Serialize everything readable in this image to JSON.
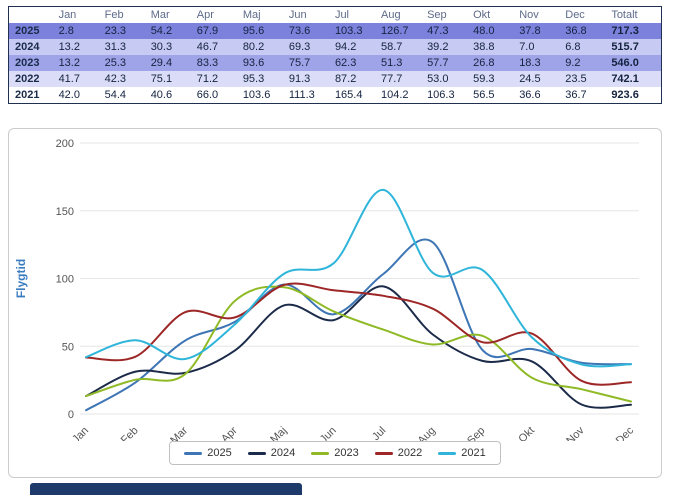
{
  "table": {
    "columns": [
      "",
      "Jan",
      "Feb",
      "Mar",
      "Apr",
      "Maj",
      "Jun",
      "Jul",
      "Aug",
      "Sep",
      "Okt",
      "Nov",
      "Dec",
      "Totalt"
    ],
    "rows": [
      {
        "year": "2025",
        "values": [
          "2.8",
          "23.3",
          "54.2",
          "67.9",
          "95.6",
          "73.6",
          "103.3",
          "126.7",
          "47.3",
          "48.0",
          "37.8",
          "36.8"
        ],
        "total": "717.3"
      },
      {
        "year": "2024",
        "values": [
          "13.2",
          "31.3",
          "30.3",
          "46.7",
          "80.2",
          "69.3",
          "94.2",
          "58.7",
          "39.2",
          "38.8",
          "7.0",
          "6.8"
        ],
        "total": "515.7"
      },
      {
        "year": "2023",
        "values": [
          "13.2",
          "25.3",
          "29.4",
          "83.3",
          "93.6",
          "75.7",
          "62.3",
          "51.3",
          "57.7",
          "26.8",
          "18.3",
          "9.2"
        ],
        "total": "546.0"
      },
      {
        "year": "2022",
        "values": [
          "41.7",
          "42.3",
          "75.1",
          "71.2",
          "95.3",
          "91.3",
          "87.2",
          "77.7",
          "53.0",
          "59.3",
          "24.5",
          "23.5"
        ],
        "total": "742.1"
      },
      {
        "year": "2021",
        "values": [
          "42.0",
          "54.4",
          "40.6",
          "66.0",
          "103.6",
          "111.3",
          "165.4",
          "104.2",
          "106.3",
          "56.5",
          "36.6",
          "36.7"
        ],
        "total": "923.6"
      }
    ]
  },
  "chart_data": {
    "type": "line",
    "x": [
      "Jan",
      "Feb",
      "Mar",
      "Apr",
      "Maj",
      "Jun",
      "Jul",
      "Aug",
      "Sep",
      "Okt",
      "Nov",
      "Dec"
    ],
    "series": [
      {
        "name": "2025",
        "color": "#3e76b5",
        "values": [
          2.8,
          23.3,
          54.2,
          67.9,
          95.6,
          73.6,
          103.3,
          126.7,
          47.3,
          48.0,
          37.8,
          36.8
        ]
      },
      {
        "name": "2024",
        "color": "#1c2b4a",
        "values": [
          13.2,
          31.3,
          30.3,
          46.7,
          80.2,
          69.3,
          94.2,
          58.7,
          39.2,
          38.8,
          7.0,
          6.8
        ]
      },
      {
        "name": "2023",
        "color": "#8fba25",
        "values": [
          13.2,
          25.3,
          29.4,
          83.3,
          93.6,
          75.7,
          62.3,
          51.3,
          57.7,
          26.8,
          18.3,
          9.2
        ]
      },
      {
        "name": "2022",
        "color": "#9d2727",
        "values": [
          41.7,
          42.3,
          75.1,
          71.2,
          95.3,
          91.3,
          87.2,
          77.7,
          53.0,
          59.3,
          24.5,
          23.5
        ]
      },
      {
        "name": "2021",
        "color": "#2fb5d9",
        "values": [
          42.0,
          54.4,
          40.6,
          66.0,
          103.6,
          111.3,
          165.4,
          104.2,
          106.3,
          56.5,
          36.6,
          36.7
        ]
      }
    ],
    "title": "",
    "xlabel": "",
    "ylabel": "Flygtid",
    "ylim": [
      0,
      200
    ],
    "yticks": [
      0,
      50,
      100,
      150,
      200
    ],
    "grid": true,
    "legend_position": "bottom"
  },
  "colors": {
    "ylabel": "#3a7cc0",
    "tick": "#555555",
    "gridline": "#e6e6e6",
    "selected_row": "#7c82dc",
    "footer_bar": "#1d3a6b"
  }
}
